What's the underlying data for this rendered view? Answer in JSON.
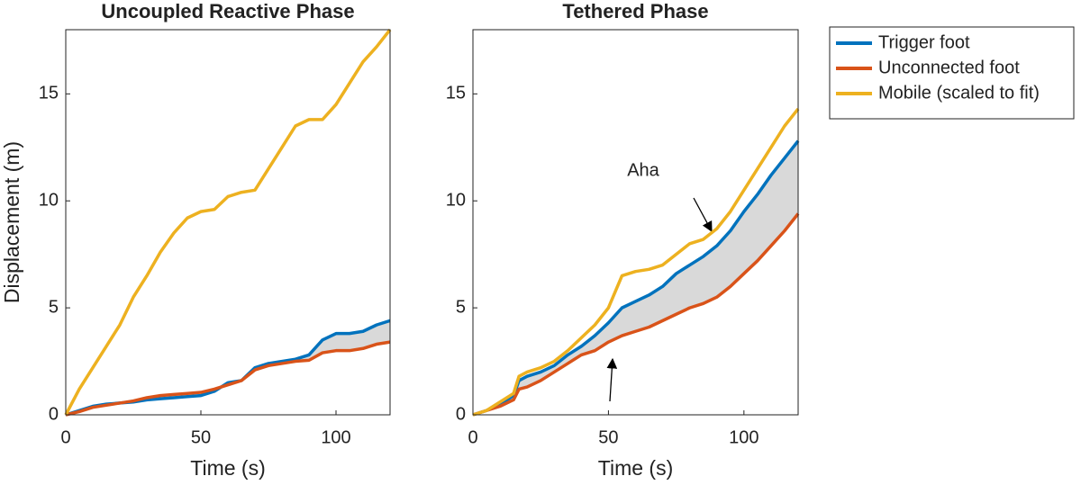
{
  "chart_data": [
    {
      "type": "line",
      "title": "Uncoupled Reactive Phase",
      "xlabel": "Time (s)",
      "ylabel": "Displacement (m)",
      "xlim": [
        0,
        120
      ],
      "ylim": [
        0,
        18
      ],
      "xticks": [
        0,
        50,
        100
      ],
      "yticks": [
        0,
        5,
        10,
        15
      ],
      "fill_between": "#d9d9d9",
      "x": [
        0,
        5,
        10,
        15,
        20,
        25,
        30,
        35,
        40,
        45,
        50,
        55,
        60,
        65,
        70,
        75,
        80,
        85,
        90,
        95,
        100,
        105,
        110,
        115,
        120
      ],
      "series": [
        {
          "name": "Trigger foot",
          "color": "#0072bd",
          "values": [
            0,
            0.2,
            0.4,
            0.5,
            0.55,
            0.6,
            0.7,
            0.75,
            0.8,
            0.85,
            0.9,
            1.1,
            1.5,
            1.6,
            2.2,
            2.4,
            2.5,
            2.6,
            2.8,
            3.5,
            3.8,
            3.8,
            3.9,
            4.2,
            4.4
          ]
        },
        {
          "name": "Unconnected foot",
          "color": "#d95319",
          "values": [
            0,
            0.15,
            0.35,
            0.45,
            0.55,
            0.65,
            0.8,
            0.9,
            0.95,
            1.0,
            1.05,
            1.2,
            1.4,
            1.6,
            2.1,
            2.3,
            2.4,
            2.5,
            2.55,
            2.9,
            3.0,
            3.0,
            3.1,
            3.3,
            3.4
          ]
        },
        {
          "name": "Mobile (scaled to fit)",
          "color": "#edb120",
          "values": [
            0,
            1.2,
            2.2,
            3.2,
            4.2,
            5.5,
            6.5,
            7.6,
            8.5,
            9.2,
            9.5,
            9.6,
            10.2,
            10.4,
            10.5,
            11.5,
            12.5,
            13.5,
            13.8,
            13.8,
            14.5,
            15.5,
            16.5,
            17.2,
            18
          ]
        }
      ]
    },
    {
      "type": "line",
      "title": "Tethered Phase",
      "xlabel": "Time (s)",
      "annotation": "Aha",
      "xlim": [
        0,
        120
      ],
      "ylim": [
        0,
        18
      ],
      "xticks": [
        0,
        50,
        100
      ],
      "yticks": [
        0,
        5,
        10,
        15
      ],
      "fill_between": "#d9d9d9",
      "x": [
        0,
        5,
        10,
        15,
        17,
        20,
        25,
        30,
        35,
        40,
        45,
        50,
        55,
        60,
        65,
        70,
        75,
        80,
        85,
        90,
        95,
        100,
        105,
        110,
        115,
        120
      ],
      "series": [
        {
          "color": "#0072bd",
          "values": [
            0,
            0.2,
            0.5,
            0.9,
            1.6,
            1.8,
            2.0,
            2.3,
            2.8,
            3.2,
            3.7,
            4.3,
            5.0,
            5.3,
            5.6,
            6.0,
            6.6,
            7.0,
            7.4,
            7.9,
            8.6,
            9.5,
            10.3,
            11.2,
            12.0,
            12.8
          ]
        },
        {
          "color": "#d95319",
          "values": [
            0,
            0.2,
            0.4,
            0.7,
            1.2,
            1.3,
            1.6,
            2.0,
            2.4,
            2.8,
            3.0,
            3.4,
            3.7,
            3.9,
            4.1,
            4.4,
            4.7,
            5.0,
            5.2,
            5.5,
            6.0,
            6.6,
            7.2,
            7.9,
            8.6,
            9.4
          ]
        },
        {
          "color": "#edb120",
          "values": [
            0,
            0.2,
            0.6,
            1.0,
            1.8,
            2.0,
            2.2,
            2.5,
            3.0,
            3.6,
            4.2,
            5.0,
            6.5,
            6.7,
            6.8,
            7.0,
            7.5,
            8.0,
            8.2,
            8.7,
            9.5,
            10.5,
            11.5,
            12.5,
            13.5,
            14.3
          ]
        }
      ]
    }
  ]
}
